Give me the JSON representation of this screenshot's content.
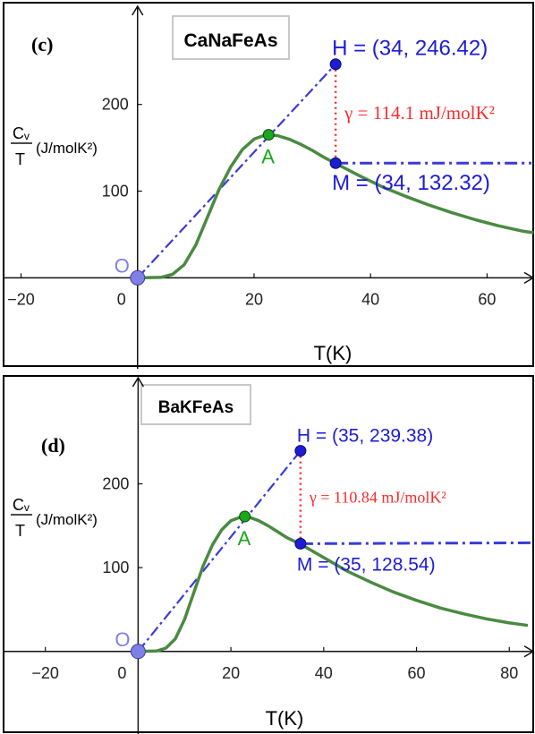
{
  "colors": {
    "curve": "#4a8a42",
    "line_blue": "#3a3adb",
    "point_blue": "#1c1cd6",
    "gamma_red": "#ff2a2a",
    "point_green": "#1aa81a",
    "origin": "#7f7fe8",
    "axis": "#111111",
    "frame": "#000000"
  },
  "chart_data": [
    {
      "type": "line",
      "panel_label": "(c)",
      "title": "CaNaFeAs",
      "xlabel": "T(K)",
      "ylabel": {
        "frac_num": "Cᵥ",
        "frac_den": "T",
        "unit": "(J/molK²)"
      },
      "xlim": [
        -23,
        67
      ],
      "ylim": [
        -75,
        305
      ],
      "x_ticks": [
        -20,
        0,
        20,
        40,
        60
      ],
      "x_tick_labels": [
        "−20",
        "0",
        "20",
        "40",
        "60"
      ],
      "y_ticks": [
        100,
        200
      ],
      "y_tick_labels": [
        "100",
        "200"
      ],
      "points": {
        "O": {
          "label": "O",
          "x": 0,
          "y": 0
        },
        "A": {
          "label": "A",
          "x": 22.5,
          "y": 165
        },
        "H": {
          "label": "H",
          "x": 34,
          "y": 246.42,
          "text": "H = (34, 246.42)"
        },
        "M": {
          "label": "M",
          "x": 34,
          "y": 132.32,
          "text": "M = (34, 132.32)"
        }
      },
      "gamma_text": "γ = 114.1 mJ/molK²",
      "curve": [
        [
          0,
          0
        ],
        [
          4,
          0.5
        ],
        [
          6,
          4
        ],
        [
          8,
          15
        ],
        [
          10,
          38
        ],
        [
          12,
          70
        ],
        [
          14,
          102
        ],
        [
          16,
          128
        ],
        [
          18,
          148
        ],
        [
          20,
          160
        ],
        [
          22,
          165
        ],
        [
          24,
          164
        ],
        [
          26,
          160
        ],
        [
          28,
          154
        ],
        [
          30,
          147
        ],
        [
          32,
          139
        ],
        [
          34,
          132
        ],
        [
          38,
          118
        ],
        [
          42,
          105
        ],
        [
          46,
          94
        ],
        [
          50,
          84
        ],
        [
          54,
          75
        ],
        [
          58,
          67
        ],
        [
          62,
          60
        ],
        [
          66,
          54
        ],
        [
          68,
          52
        ]
      ],
      "series": [
        {
          "name": "",
          "kind": "curve"
        },
        {
          "name": "",
          "kind": "line O-H"
        },
        {
          "name": "",
          "kind": "horizontal through M"
        }
      ]
    },
    {
      "type": "line",
      "panel_label": "(d)",
      "title": "BaKFeAs",
      "xlabel": "T(K)",
      "ylabel": {
        "frac_num": "Cᵥ",
        "frac_den": "T",
        "unit": "(J/molK²)"
      },
      "xlim": [
        -29,
        84
      ],
      "ylim": [
        -75,
        318
      ],
      "x_ticks": [
        -20,
        0,
        20,
        40,
        60,
        80
      ],
      "x_tick_labels": [
        "−20",
        "0",
        "20",
        "40",
        "60",
        "80"
      ],
      "y_ticks": [
        100,
        200
      ],
      "y_tick_labels": [
        "100",
        "200"
      ],
      "points": {
        "O": {
          "label": "O",
          "x": 0,
          "y": 0
        },
        "A": {
          "label": "A",
          "x": 23,
          "y": 161
        },
        "H": {
          "label": "H",
          "x": 35,
          "y": 239.38,
          "text": "H = (35, 239.38)"
        },
        "M": {
          "label": "M",
          "x": 35,
          "y": 128.54,
          "text": "M = (35, 128.54)"
        }
      },
      "gamma_text": "γ = 110.84 mJ/molK²",
      "curve": [
        [
          0,
          0
        ],
        [
          4,
          0.5
        ],
        [
          6,
          4
        ],
        [
          8,
          15
        ],
        [
          10,
          38
        ],
        [
          12,
          70
        ],
        [
          14,
          102
        ],
        [
          16,
          127
        ],
        [
          18,
          145
        ],
        [
          20,
          156
        ],
        [
          22,
          160
        ],
        [
          24,
          160
        ],
        [
          26,
          156
        ],
        [
          28,
          150
        ],
        [
          30,
          143
        ],
        [
          32,
          136
        ],
        [
          35,
          128
        ],
        [
          40,
          112
        ],
        [
          45,
          96
        ],
        [
          50,
          83
        ],
        [
          55,
          71
        ],
        [
          60,
          61
        ],
        [
          65,
          52
        ],
        [
          70,
          45
        ],
        [
          75,
          39
        ],
        [
          80,
          34
        ],
        [
          84,
          31
        ]
      ],
      "series": [
        {
          "name": "",
          "kind": "curve"
        },
        {
          "name": "",
          "kind": "line O-H"
        },
        {
          "name": "",
          "kind": "horizontal through M"
        }
      ]
    }
  ]
}
